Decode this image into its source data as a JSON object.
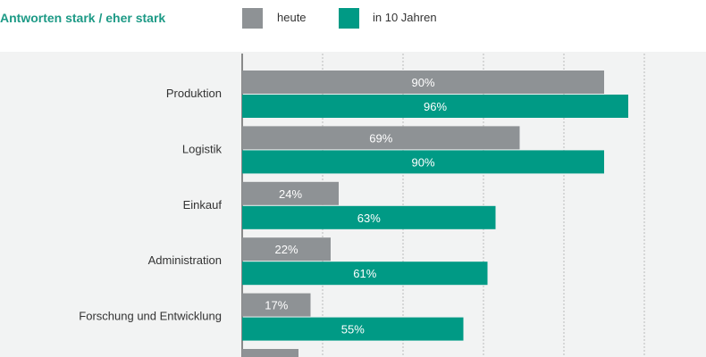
{
  "chart_data": {
    "type": "bar",
    "orientation": "horizontal",
    "title": "Antworten stark / eher stark",
    "categories": [
      "Produktion",
      "Logistik",
      "Einkauf",
      "Administration",
      "Forschung und Entwicklung",
      ""
    ],
    "series": [
      {
        "name": "heute",
        "color": "#8e9295",
        "values": [
          90,
          69,
          24,
          22,
          17,
          14
        ],
        "labels": [
          "90%",
          "69%",
          "24%",
          "22%",
          "17%",
          ""
        ]
      },
      {
        "name": "in 10 Jahren",
        "color": "#009a85",
        "values": [
          96,
          90,
          63,
          61,
          55,
          null
        ],
        "labels": [
          "96%",
          "90%",
          "63%",
          "61%",
          "55%",
          ""
        ]
      }
    ],
    "xlim": [
      0,
      100
    ],
    "grid_ticks": [
      20,
      40,
      60,
      80,
      100
    ],
    "grid": true,
    "legend": "top"
  }
}
